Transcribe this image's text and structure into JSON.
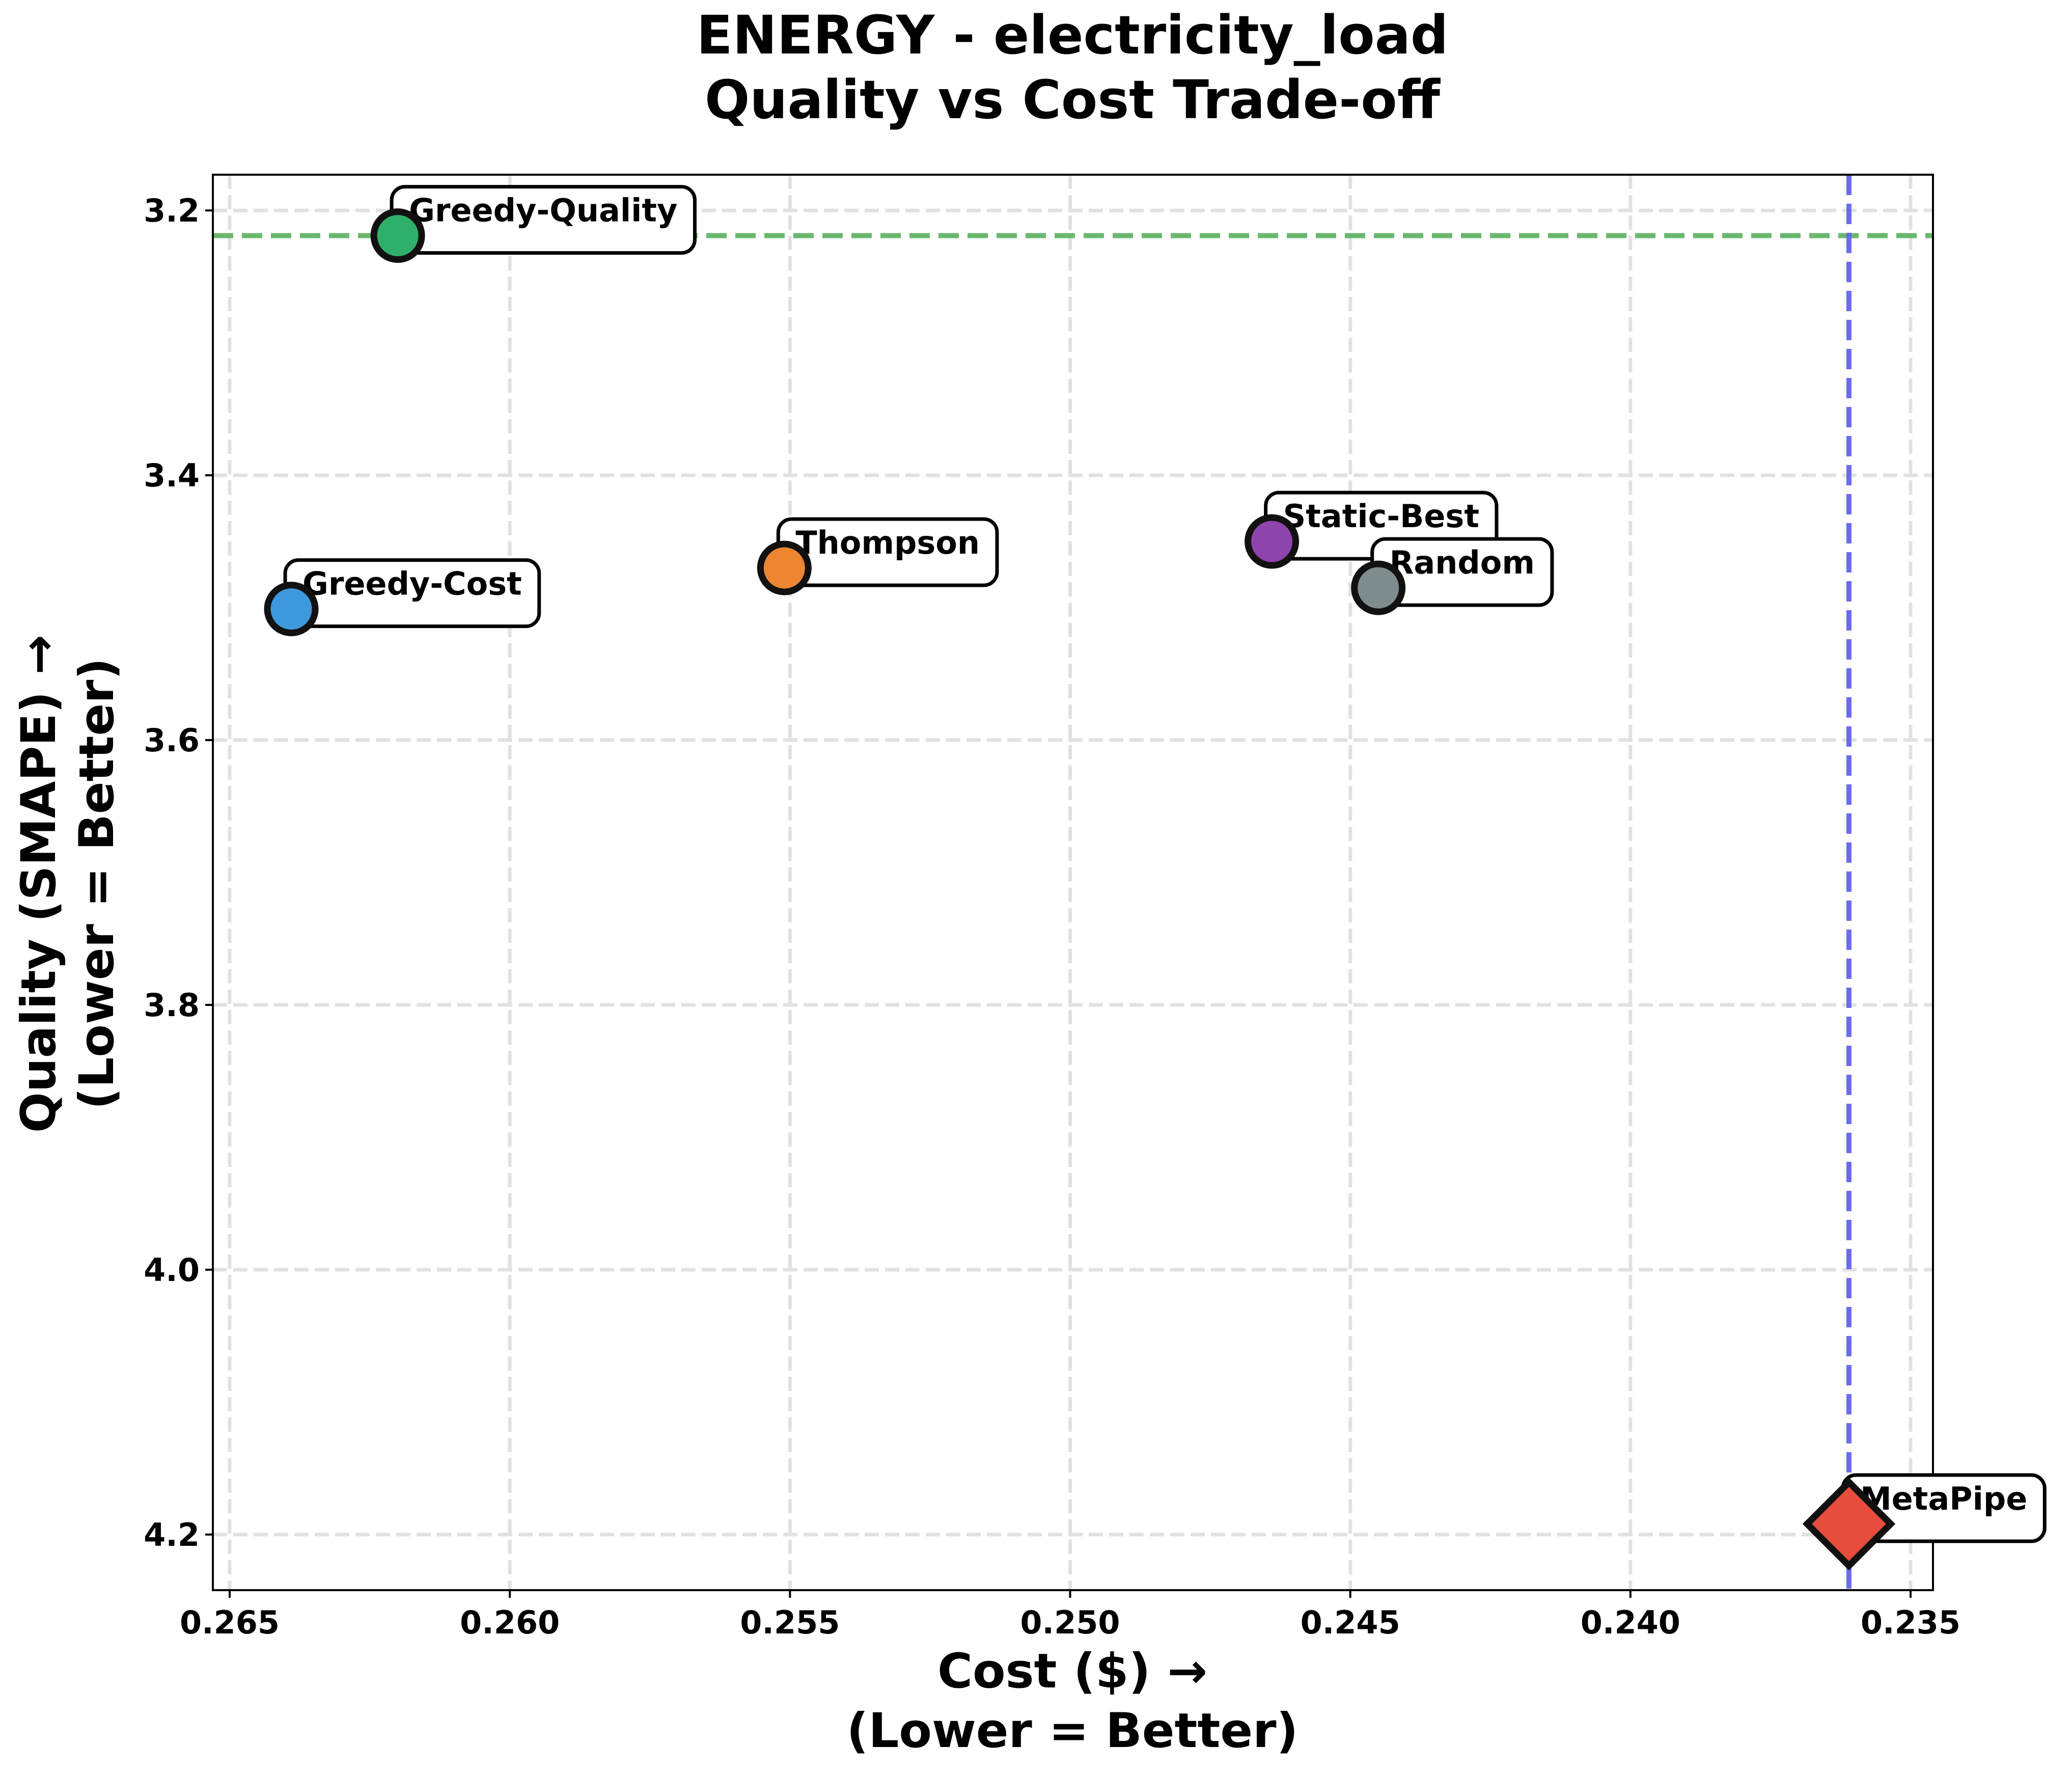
{
  "chart_data": {
    "type": "scatter",
    "title_line1": "ENERGY - electricity_load",
    "title_line2": "Quality vs Cost Trade-off",
    "xlabel_line1": "Cost ($) →",
    "xlabel_line2": "(Lower = Better)",
    "ylabel_line1": "Quality (SMAPE) →",
    "ylabel_line2": "(Lower = Better)",
    "x_inverted": true,
    "y_inverted": true,
    "xlim": [
      0.2653,
      0.2346
    ],
    "ylim": [
      3.173,
      4.242
    ],
    "xticks": [
      "0.265",
      "0.260",
      "0.255",
      "0.250",
      "0.245",
      "0.240",
      "0.235"
    ],
    "xtick_values": [
      0.265,
      0.26,
      0.255,
      0.25,
      0.245,
      0.24,
      0.235
    ],
    "yticks": [
      "3.2",
      "3.4",
      "3.6",
      "3.8",
      "4.0",
      "4.2"
    ],
    "ytick_values": [
      3.2,
      3.4,
      3.6,
      3.8,
      4.0,
      4.2
    ],
    "grid": true,
    "reference_lines": [
      {
        "orientation": "horizontal",
        "value": 3.219,
        "color": "#6ab86e",
        "style": "dashed"
      },
      {
        "orientation": "vertical",
        "value": 0.2361,
        "color": "#6b6bf2",
        "style": "dashed"
      }
    ],
    "points": [
      {
        "name": "Greedy-Quality",
        "x": 0.262,
        "y": 3.219,
        "color": "#2eb06a",
        "marker": "circle"
      },
      {
        "name": "Greedy-Cost",
        "x": 0.2639,
        "y": 3.501,
        "color": "#3d98dc",
        "marker": "circle"
      },
      {
        "name": "Thompson",
        "x": 0.2551,
        "y": 3.47,
        "color": "#ee8530",
        "marker": "circle"
      },
      {
        "name": "Static-Best",
        "x": 0.2464,
        "y": 3.45,
        "color": "#8e44ad",
        "marker": "circle"
      },
      {
        "name": "Random",
        "x": 0.2445,
        "y": 3.485,
        "color": "#7f8c8d",
        "marker": "circle"
      },
      {
        "name": "MetaPipe",
        "x": 0.2361,
        "y": 4.192,
        "color": "#e74c3c",
        "marker": "diamond"
      }
    ]
  }
}
